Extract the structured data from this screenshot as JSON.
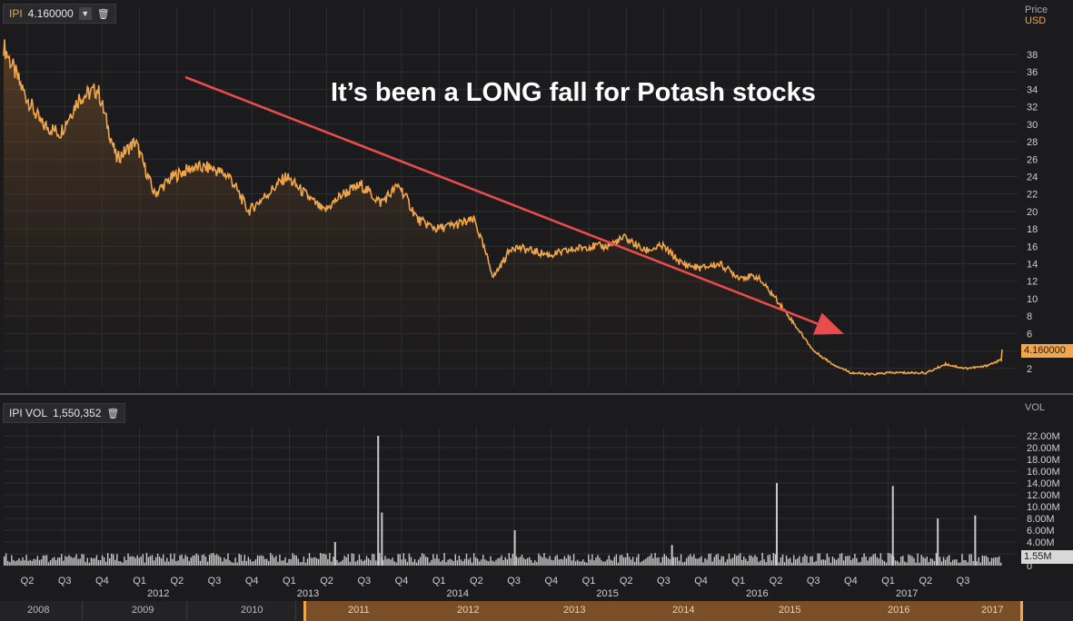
{
  "price_panel": {
    "symbol": "IPI",
    "value": "4.160000",
    "axis_title": "Price",
    "axis_unit": "USD",
    "current_label": "4.160000",
    "icons": {
      "dropdown": "chevron-down-icon",
      "delete": "trash-icon"
    }
  },
  "volume_panel": {
    "label": "IPI VOL",
    "value": "1,550,352",
    "axis_title": "VOL",
    "current_label": "1.55M",
    "icons": {
      "delete": "trash-icon"
    }
  },
  "annotation": {
    "text": "It’s been a LONG fall for Potash stocks",
    "arrow_color": "#e84c4c"
  },
  "colors": {
    "line": "#f2a64a",
    "volume": "#c8c8c8",
    "background": "#1b1b1d",
    "grid": "#2e2e30"
  },
  "timeline": {
    "labels": [
      "2008",
      "2009",
      "2010",
      "2011",
      "2012",
      "2013",
      "2014",
      "2015",
      "2016",
      "2017"
    ],
    "selected_range": [
      "2011",
      "2017"
    ]
  },
  "chart_data": [
    {
      "type": "line",
      "name": "IPI",
      "ylabel": "Price",
      "yunit": "USD",
      "ylim": [
        0,
        40
      ],
      "y_ticks": [
        2,
        4,
        6,
        8,
        10,
        12,
        14,
        16,
        18,
        20,
        22,
        24,
        26,
        28,
        30,
        32,
        34,
        36,
        38
      ],
      "quarter_ticks": [
        "Q2",
        "Q3",
        "Q4",
        "Q1",
        "Q2",
        "Q3",
        "Q4",
        "Q1",
        "Q2",
        "Q3",
        "Q4",
        "Q1",
        "Q2",
        "Q3",
        "Q4",
        "Q1",
        "Q2",
        "Q3",
        "Q4",
        "Q1",
        "Q2",
        "Q3",
        "Q4",
        "Q1",
        "Q2",
        "Q3"
      ],
      "year_ticks": [
        {
          "label": "2012",
          "after_index": 3
        },
        {
          "label": "2013",
          "after_index": 7
        },
        {
          "label": "2014",
          "after_index": 11
        },
        {
          "label": "2015",
          "after_index": 15
        },
        {
          "label": "2016",
          "after_index": 19
        },
        {
          "label": "2017",
          "after_index": 23
        }
      ],
      "x": [
        0,
        0.5,
        1,
        1.5,
        2,
        2.5,
        3,
        3.5,
        4,
        4.5,
        5,
        5.5,
        6,
        6.5,
        7,
        7.5,
        8,
        8.5,
        9,
        9.5,
        10,
        10.5,
        11,
        11.5,
        12,
        12.5,
        13,
        13.5,
        14,
        14.5,
        15,
        15.5,
        16,
        16.5,
        17,
        17.5,
        18,
        18.5,
        19,
        19.5,
        20,
        20.5,
        21,
        21.5,
        22,
        22.5,
        23,
        23.5,
        24,
        24.5,
        25,
        25.5,
        26,
        26.5
      ],
      "values": [
        39,
        34,
        30,
        29,
        33,
        34,
        26,
        28,
        22,
        24,
        25,
        25,
        24,
        20,
        22,
        24,
        22,
        20,
        22,
        23,
        21,
        23,
        19,
        18,
        18.5,
        19,
        12.5,
        16,
        15.5,
        15,
        15.5,
        16,
        16,
        17,
        15.5,
        16,
        14,
        13.5,
        14,
        12.5,
        12.5,
        10,
        7,
        4,
        2.5,
        1.5,
        1.3,
        1.5,
        1.5,
        1.5,
        2.5,
        2,
        2.2,
        3
      ],
      "last_value": 4.16
    },
    {
      "type": "bar",
      "name": "IPI VOL",
      "ylabel": "VOL",
      "ylim": [
        0,
        24000000
      ],
      "y_ticks": [
        "2.00M",
        "4.00M",
        "6.00M",
        "8.00M",
        "10.00M",
        "12.00M",
        "14.00M",
        "16.00M",
        "18.00M",
        "20.00M",
        "22.00M"
      ],
      "y_tick_values": [
        2000000,
        4000000,
        6000000,
        8000000,
        10000000,
        12000000,
        14000000,
        16000000,
        18000000,
        20000000,
        22000000
      ],
      "baseline_label": "0",
      "last_value": 1550352,
      "spikes": [
        {
          "x": 9.35,
          "value": 22000000
        },
        {
          "x": 9.45,
          "value": 9000000
        },
        {
          "x": 20.0,
          "value": 14000000
        },
        {
          "x": 23.1,
          "value": 13500000
        },
        {
          "x": 13.0,
          "value": 6000000
        },
        {
          "x": 24.3,
          "value": 8000000
        },
        {
          "x": 25.3,
          "value": 8500000
        },
        {
          "x": 17.2,
          "value": 3500000
        },
        {
          "x": 8.2,
          "value": 4000000
        }
      ],
      "typical_value": 1200000
    }
  ]
}
